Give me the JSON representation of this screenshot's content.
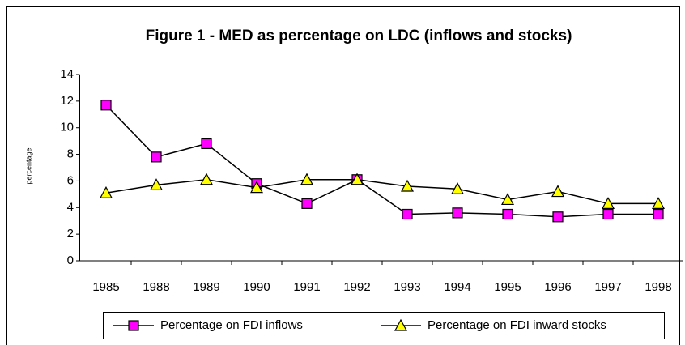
{
  "chart_data": {
    "type": "line",
    "title": "Figure 1 - MED as percentage on LDC (inflows and stocks)",
    "y_label": "percentage",
    "categories": [
      "1985",
      "1988",
      "1989",
      "1990",
      "1991",
      "1992",
      "1993",
      "1994",
      "1995",
      "1996",
      "1997",
      "1998"
    ],
    "series": [
      {
        "name": "Percentage on FDI inflows",
        "color": "#ff00ff",
        "marker": "square",
        "values": [
          11.7,
          7.8,
          8.8,
          5.8,
          4.3,
          6.1,
          3.5,
          3.6,
          3.5,
          3.3,
          3.5,
          3.5
        ]
      },
      {
        "name": "Percentage on FDI inward stocks",
        "color": "#ffff00",
        "marker": "triangle",
        "values": [
          5.1,
          5.7,
          6.1,
          5.5,
          6.1,
          6.1,
          5.6,
          5.4,
          4.6,
          5.2,
          4.3,
          4.3
        ]
      }
    ],
    "ylim": [
      0,
      14
    ],
    "yticks": [
      0,
      2,
      4,
      6,
      8,
      10,
      12,
      14
    ],
    "grid": false,
    "legend": "bottom"
  }
}
